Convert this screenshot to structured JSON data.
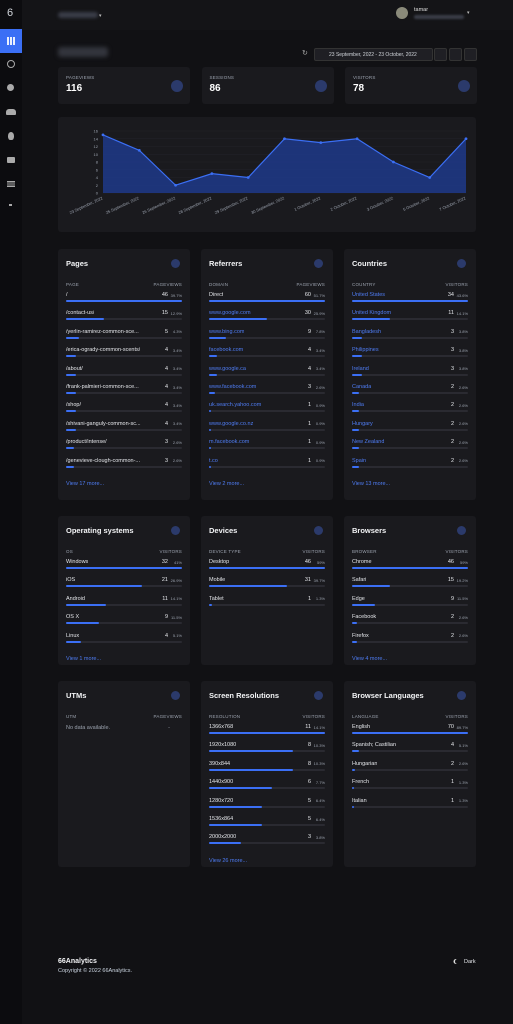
{
  "sidebar": {
    "logo": "6"
  },
  "header": {
    "user": "tamar"
  },
  "date_range": "23 September, 2022 - 23 October, 2022",
  "stats": [
    {
      "label": "PAGEVIEWS",
      "value": 116
    },
    {
      "label": "SESSIONS",
      "value": 86
    },
    {
      "label": "VISITORS",
      "value": 78
    }
  ],
  "chart_data": {
    "type": "area",
    "categories": [
      "23 September, 2022",
      "25 September, 2022",
      "26 September, 2022",
      "28 September, 2022",
      "29 September, 2022",
      "30 September, 2022",
      "1 October, 2022",
      "2 October, 2022",
      "3 October, 2022",
      "5 October, 2022",
      "7 October, 2022"
    ],
    "values": [
      15,
      11,
      2,
      5,
      4,
      14,
      13,
      14,
      8,
      4,
      14
    ],
    "ylim": [
      0,
      16
    ],
    "yticks": [
      0,
      2,
      4,
      6,
      8,
      10,
      12,
      14,
      16
    ],
    "color": "#1e3a8a"
  },
  "cards": [
    {
      "title": "Pages",
      "columns": [
        "PAGE",
        "PAGEVIEWS"
      ],
      "rows": [
        {
          "label": "/",
          "value": 46,
          "percent": "39.7%"
        },
        {
          "label": "/contact-us/",
          "value": 15,
          "percent": "12.9%"
        },
        {
          "label": "/yerlin-ramirez-common-sce...",
          "value": 5,
          "percent": "4.3%"
        },
        {
          "label": "/erica-ogrady-common-scents/",
          "value": 4,
          "percent": "3.4%"
        },
        {
          "label": "/about/",
          "value": 4,
          "percent": "3.4%"
        },
        {
          "label": "/frank-palmieri-common-sce...",
          "value": 4,
          "percent": "3.4%"
        },
        {
          "label": "/shop/",
          "value": 4,
          "percent": "3.4%"
        },
        {
          "label": "/shivani-ganguly-common-sc...",
          "value": 4,
          "percent": "3.4%"
        },
        {
          "label": "/product/intense/",
          "value": 3,
          "percent": "2.6%"
        },
        {
          "label": "/genevieve-clough-common-...",
          "value": 3,
          "percent": "2.6%"
        }
      ],
      "more": "View 17 more..."
    },
    {
      "title": "Referrers",
      "columns": [
        "DOMAIN",
        "PAGEVIEWS"
      ],
      "rows": [
        {
          "label": "Direct",
          "value": 60,
          "percent": "51.7%"
        },
        {
          "label": "www.google.com",
          "value": 30,
          "percent": "25.9%",
          "link": true
        },
        {
          "label": "www.bing.com",
          "value": 9,
          "percent": "7.8%",
          "link": true
        },
        {
          "label": "facebook.com",
          "value": 4,
          "percent": "3.4%",
          "link": true
        },
        {
          "label": "www.google.ca",
          "value": 4,
          "percent": "3.4%",
          "link": true
        },
        {
          "label": "www.facebook.com",
          "value": 3,
          "percent": "2.6%",
          "link": true
        },
        {
          "label": "uk.search.yahoo.com",
          "value": 1,
          "percent": "0.9%",
          "link": true
        },
        {
          "label": "www.google.co.nz",
          "value": 1,
          "percent": "0.9%",
          "link": true
        },
        {
          "label": "m.facebook.com",
          "value": 1,
          "percent": "0.9%",
          "link": true
        },
        {
          "label": "t.co",
          "value": 1,
          "percent": "0.9%",
          "link": true
        }
      ],
      "more": "View 2 more..."
    },
    {
      "title": "Countries",
      "columns": [
        "COUNTRY",
        "VISITORS"
      ],
      "rows": [
        {
          "label": "United States",
          "value": 34,
          "percent": "43.6%",
          "link": true
        },
        {
          "label": "United Kingdom",
          "value": 11,
          "percent": "14.1%",
          "link": true
        },
        {
          "label": "Bangladesh",
          "value": 3,
          "percent": "3.8%",
          "link": true
        },
        {
          "label": "Philippines",
          "value": 3,
          "percent": "3.8%",
          "link": true
        },
        {
          "label": "Ireland",
          "value": 3,
          "percent": "3.8%",
          "link": true
        },
        {
          "label": "Canada",
          "value": 2,
          "percent": "2.6%",
          "link": true
        },
        {
          "label": "India",
          "value": 2,
          "percent": "2.6%",
          "link": true
        },
        {
          "label": "Hungary",
          "value": 2,
          "percent": "2.6%",
          "link": true
        },
        {
          "label": "New Zealand",
          "value": 2,
          "percent": "2.6%",
          "link": true
        },
        {
          "label": "Spain",
          "value": 2,
          "percent": "2.6%",
          "link": true
        }
      ],
      "more": "View 13 more..."
    },
    {
      "title": "Operating systems",
      "columns": [
        "OS",
        "VISITORS"
      ],
      "rows": [
        {
          "label": "Windows",
          "value": 32,
          "percent": "41%"
        },
        {
          "label": "iOS",
          "value": 21,
          "percent": "26.9%"
        },
        {
          "label": "Android",
          "value": 11,
          "percent": "14.1%"
        },
        {
          "label": "OS X",
          "value": 9,
          "percent": "11.5%"
        },
        {
          "label": "Linux",
          "value": 4,
          "percent": "5.1%"
        }
      ],
      "more": "View 1 more..."
    },
    {
      "title": "Devices",
      "columns": [
        "DEVICE TYPE",
        "VISITORS"
      ],
      "rows": [
        {
          "label": "Desktop",
          "value": 46,
          "percent": "59%"
        },
        {
          "label": "Mobile",
          "value": 31,
          "percent": "39.7%"
        },
        {
          "label": "Tablet",
          "value": 1,
          "percent": "1.3%"
        }
      ]
    },
    {
      "title": "Browsers",
      "columns": [
        "BROWSER",
        "VISITORS"
      ],
      "rows": [
        {
          "label": "Chrome",
          "value": 46,
          "percent": "59%"
        },
        {
          "label": "Safari",
          "value": 15,
          "percent": "19.2%"
        },
        {
          "label": "Edge",
          "value": 9,
          "percent": "11.5%"
        },
        {
          "label": "Facebook",
          "value": 2,
          "percent": "2.6%"
        },
        {
          "label": "Firefox",
          "value": 2,
          "percent": "2.6%"
        }
      ],
      "more": "View 4 more..."
    },
    {
      "title": "UTMs",
      "columns": [
        "UTM",
        "PAGEVIEWS"
      ],
      "rows": [],
      "empty": "No data available.",
      "empty_value": "-"
    },
    {
      "title": "Screen Resolutions",
      "columns": [
        "RESOLUTION",
        "VISITORS"
      ],
      "rows": [
        {
          "label": "1366x768",
          "value": 11,
          "percent": "14.1%"
        },
        {
          "label": "1920x1080",
          "value": 8,
          "percent": "10.3%"
        },
        {
          "label": "390x844",
          "value": 8,
          "percent": "10.3%"
        },
        {
          "label": "1440x900",
          "value": 6,
          "percent": "7.7%"
        },
        {
          "label": "1280x720",
          "value": 5,
          "percent": "6.4%"
        },
        {
          "label": "1536x864",
          "value": 5,
          "percent": "6.4%"
        },
        {
          "label": "2000x2000",
          "value": 3,
          "percent": "3.8%"
        }
      ],
      "more": "View 26 more..."
    },
    {
      "title": "Browser Languages",
      "columns": [
        "LANGUAGE",
        "VISITORS"
      ],
      "rows": [
        {
          "label": "English",
          "value": 70,
          "percent": "89.7%"
        },
        {
          "label": "Spanish; Castilian",
          "value": 4,
          "percent": "5.1%"
        },
        {
          "label": "Hungarian",
          "value": 2,
          "percent": "2.6%"
        },
        {
          "label": "French",
          "value": 1,
          "percent": "1.3%"
        },
        {
          "label": "Italian",
          "value": 1,
          "percent": "1.3%"
        }
      ]
    }
  ],
  "footer": {
    "brand": "66Analytics",
    "copyright": "Copyright © 2022 66Analytics.",
    "theme": "Dark"
  }
}
